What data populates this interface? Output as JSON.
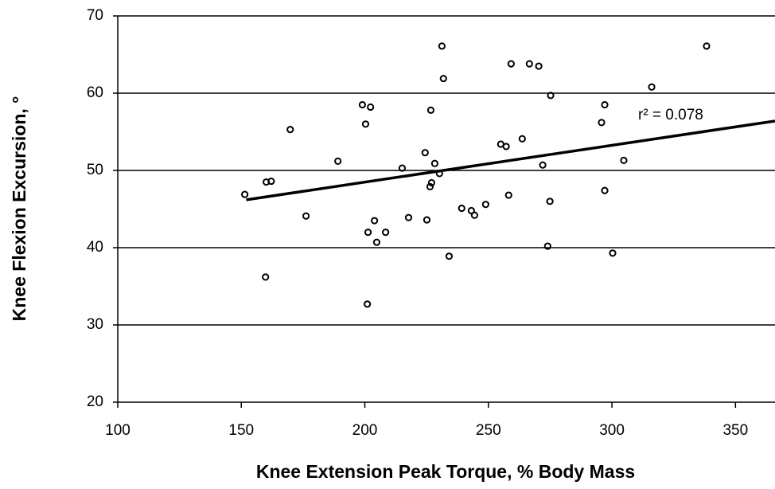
{
  "chart_data": {
    "type": "scatter",
    "x_label": "Knee Extension Peak Torque, % Body Mass",
    "y_label": "Knee Flexion Excursion, °",
    "annotation": "r² = 0.078",
    "xlim": [
      100,
      366
    ],
    "xticks": [
      100,
      150,
      200,
      250,
      300,
      350
    ],
    "ylim": [
      20,
      70
    ],
    "yticks": [
      20,
      30,
      40,
      50,
      60,
      70
    ],
    "grid": true,
    "color": "#000000",
    "x": [
      151.4,
      160.1,
      162.1,
      159.8,
      169.8,
      176.2,
      189.1,
      199.0,
      202.3,
      200.3,
      201.3,
      203.9,
      204.8,
      208.4,
      201.0,
      215.1,
      217.7,
      224.4,
      225.1,
      226.7,
      226.4,
      227.0,
      228.3,
      230.2,
      231.2,
      231.8,
      234.1,
      239.2,
      243.1,
      244.4,
      248.9,
      255.0,
      257.2,
      258.2,
      259.2,
      266.6,
      270.4,
      263.7,
      272.0,
      274.0,
      274.9,
      275.2,
      295.8,
      297.1,
      297.1,
      300.3,
      304.8,
      316.1,
      338.3
    ],
    "values": [
      46.9,
      48.5,
      48.6,
      36.2,
      55.3,
      44.1,
      51.2,
      58.5,
      58.2,
      56.0,
      42.0,
      43.5,
      40.7,
      42.0,
      32.7,
      50.3,
      43.9,
      52.3,
      43.6,
      57.8,
      47.9,
      48.4,
      50.9,
      49.6,
      66.1,
      61.9,
      38.9,
      45.1,
      44.8,
      44.2,
      45.6,
      53.4,
      53.1,
      46.8,
      63.8,
      63.8,
      63.5,
      54.1,
      50.7,
      40.2,
      46.0,
      59.7,
      56.2,
      58.5,
      47.4,
      39.3,
      51.3,
      60.8,
      66.1
    ],
    "trendline": {
      "x": [
        152,
        366
      ],
      "y": [
        46.2,
        56.4
      ]
    }
  }
}
